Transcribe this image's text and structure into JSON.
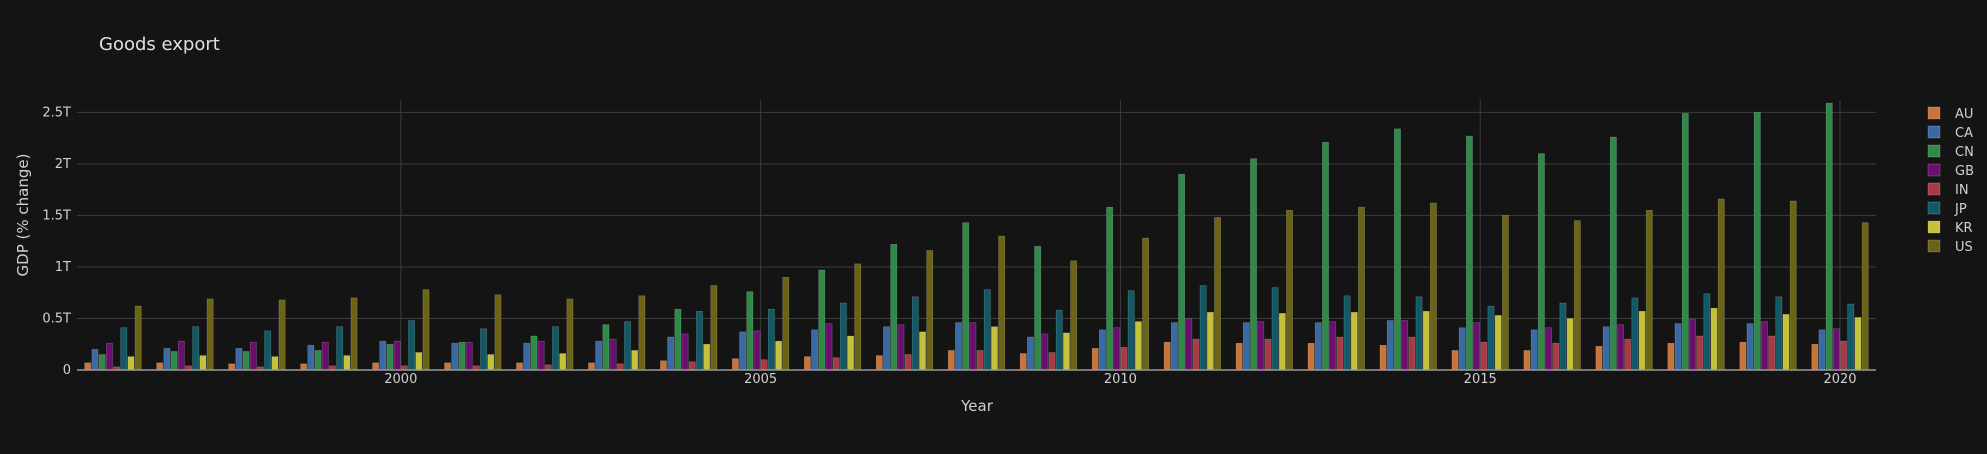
{
  "chart_data": {
    "type": "bar",
    "title": "Goods export",
    "xlabel": "Year",
    "ylabel": "GDP (% change)",
    "x": [
      1996,
      1997,
      1998,
      1999,
      2000,
      2001,
      2002,
      2003,
      2004,
      2005,
      2006,
      2007,
      2008,
      2009,
      2010,
      2011,
      2012,
      2013,
      2014,
      2015,
      2016,
      2017,
      2018,
      2019,
      2020
    ],
    "xlim": [
      1995.5,
      2020.5
    ],
    "ylim": [
      0,
      2.62
    ],
    "x_ticks": [
      2000,
      2005,
      2010,
      2015,
      2020
    ],
    "x_tick_labels": [
      "2000",
      "2005",
      "2010",
      "2015",
      "2020"
    ],
    "y_ticks": [
      0,
      0.5,
      1,
      1.5,
      2,
      2.5
    ],
    "y_tick_labels": [
      "0",
      "0.5T",
      "1T",
      "1.5T",
      "2T",
      "2.5T"
    ],
    "grid": true,
    "legend_position": "right",
    "value_unit": "trillions",
    "series": [
      {
        "name": "AU",
        "color": "#c8743a",
        "values": [
          0.07,
          0.07,
          0.06,
          0.06,
          0.07,
          0.07,
          0.07,
          0.07,
          0.09,
          0.11,
          0.13,
          0.14,
          0.19,
          0.16,
          0.21,
          0.27,
          0.26,
          0.26,
          0.24,
          0.19,
          0.19,
          0.23,
          0.26,
          0.27,
          0.25
        ]
      },
      {
        "name": "CA",
        "color": "#3a6aa3",
        "values": [
          0.2,
          0.21,
          0.21,
          0.24,
          0.28,
          0.26,
          0.26,
          0.28,
          0.32,
          0.37,
          0.39,
          0.42,
          0.46,
          0.32,
          0.39,
          0.46,
          0.46,
          0.46,
          0.48,
          0.41,
          0.39,
          0.42,
          0.45,
          0.45,
          0.39
        ]
      },
      {
        "name": "CN",
        "color": "#2f8a4a",
        "values": [
          0.15,
          0.18,
          0.18,
          0.19,
          0.25,
          0.27,
          0.33,
          0.44,
          0.59,
          0.76,
          0.97,
          1.22,
          1.43,
          1.2,
          1.58,
          1.9,
          2.05,
          2.21,
          2.34,
          2.27,
          2.1,
          2.26,
          2.49,
          2.5,
          2.59
        ]
      },
      {
        "name": "GB",
        "color": "#6a0f6e",
        "values": [
          0.26,
          0.28,
          0.27,
          0.27,
          0.28,
          0.27,
          0.28,
          0.3,
          0.35,
          0.38,
          0.45,
          0.44,
          0.46,
          0.35,
          0.41,
          0.5,
          0.47,
          0.47,
          0.48,
          0.46,
          0.41,
          0.44,
          0.49,
          0.47,
          0.4
        ]
      },
      {
        "name": "IN",
        "color": "#a83a48",
        "values": [
          0.03,
          0.04,
          0.03,
          0.04,
          0.04,
          0.04,
          0.05,
          0.06,
          0.08,
          0.1,
          0.12,
          0.15,
          0.19,
          0.17,
          0.22,
          0.3,
          0.3,
          0.32,
          0.32,
          0.27,
          0.26,
          0.3,
          0.33,
          0.33,
          0.28
        ]
      },
      {
        "name": "JP",
        "color": "#0f5a66",
        "values": [
          0.41,
          0.42,
          0.38,
          0.42,
          0.48,
          0.4,
          0.42,
          0.47,
          0.57,
          0.59,
          0.65,
          0.71,
          0.78,
          0.58,
          0.77,
          0.82,
          0.8,
          0.72,
          0.71,
          0.62,
          0.65,
          0.7,
          0.74,
          0.71,
          0.64
        ]
      },
      {
        "name": "KR",
        "color": "#c4c23a",
        "values": [
          0.13,
          0.14,
          0.13,
          0.14,
          0.17,
          0.15,
          0.16,
          0.19,
          0.25,
          0.28,
          0.33,
          0.37,
          0.42,
          0.36,
          0.47,
          0.56,
          0.55,
          0.56,
          0.57,
          0.53,
          0.5,
          0.57,
          0.6,
          0.54,
          0.51
        ]
      },
      {
        "name": "US",
        "color": "#6b6414",
        "values": [
          0.62,
          0.69,
          0.68,
          0.7,
          0.78,
          0.73,
          0.69,
          0.72,
          0.82,
          0.9,
          1.03,
          1.16,
          1.3,
          1.06,
          1.28,
          1.48,
          1.55,
          1.58,
          1.62,
          1.5,
          1.45,
          1.55,
          1.66,
          1.64,
          1.43
        ]
      }
    ]
  }
}
